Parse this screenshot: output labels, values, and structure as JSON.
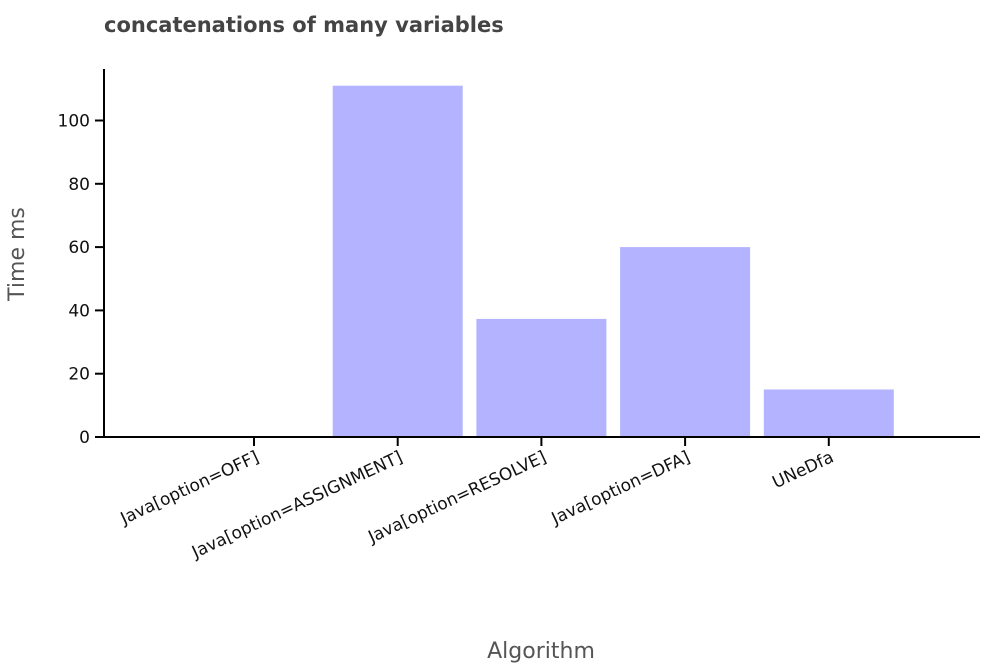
{
  "chart_data": {
    "type": "bar",
    "title": "concatenations of many variables",
    "xlabel": "Algorithm",
    "ylabel": "Time ms",
    "categories": [
      "Java[option=OFF]",
      "Java[option=ASSIGNMENT]",
      "Java[option=RESOLVE]",
      "Java[option=DFA]",
      "UNeDfa"
    ],
    "values": [
      0,
      111,
      37.3,
      60,
      15
    ],
    "ylim": [
      0,
      115
    ],
    "yticks": [
      0,
      20,
      40,
      60,
      80,
      100
    ],
    "grid": false,
    "legend": "none",
    "bar_color": "#b3b3ff"
  }
}
